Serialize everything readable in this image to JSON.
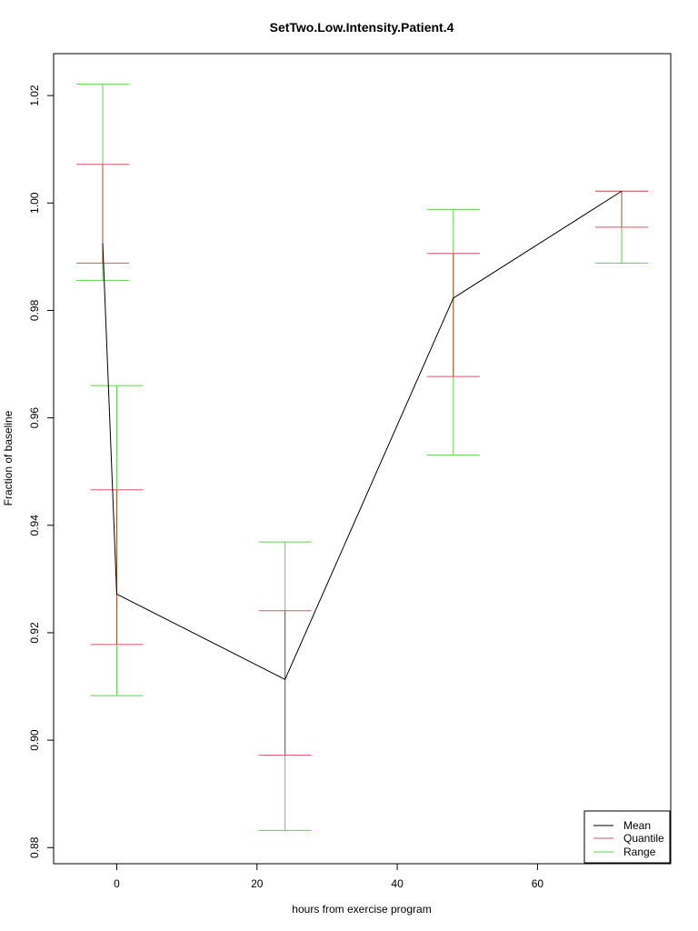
{
  "chart_data": {
    "type": "line",
    "title": "SetTwo.Low.Intensity.Patient.4",
    "xlabel": "hours from exercise program",
    "ylabel": "Fraction of baseline",
    "xlim": [
      -9,
      79
    ],
    "ylim": [
      0.877,
      1.0278
    ],
    "x_ticks": [
      0,
      20,
      40,
      60
    ],
    "y_ticks": [
      0.88,
      0.9,
      0.92,
      0.94,
      0.96,
      0.98,
      1.0,
      1.02
    ],
    "x_tick_labels": [
      "0",
      "20",
      "40",
      "60"
    ],
    "y_tick_labels": [
      "0.88",
      "0.90",
      "0.92",
      "0.94",
      "0.96",
      "0.98",
      "1.00",
      "1.02"
    ],
    "mean": {
      "x": [
        -2,
        0,
        24,
        48,
        72
      ],
      "y": [
        0.9925,
        0.9272,
        0.9113,
        0.9823,
        1.0022
      ]
    },
    "quantile_bars": [
      {
        "x": -2,
        "low": 0.9888,
        "high": 1.0072
      },
      {
        "x": 0,
        "low": 0.9178,
        "high": 0.9466
      },
      {
        "x": 24,
        "low": 0.8972,
        "high": 0.9241
      },
      {
        "x": 48,
        "low": 0.9677,
        "high": 0.9906
      },
      {
        "x": 72,
        "low": 0.9955,
        "high": 1.0022
      }
    ],
    "range_bars": [
      {
        "x": -2,
        "low": 0.9856,
        "high": 1.0221
      },
      {
        "x": 0,
        "low": 0.9083,
        "high": 0.966
      },
      {
        "x": 24,
        "low": 0.8832,
        "high": 0.9369
      },
      {
        "x": 48,
        "low": 0.9531,
        "high": 0.9988
      },
      {
        "x": 72,
        "low": 0.9888,
        "high": 1.0022
      }
    ],
    "legend": {
      "position": "bottom-right",
      "entries": [
        {
          "label": "Mean",
          "color": "#000000"
        },
        {
          "label": "Quantile",
          "color": "#df536b"
        },
        {
          "label": "Range",
          "color": "#61d04f"
        }
      ]
    },
    "colors": {
      "mean": "#000000",
      "quantile": "#df536b",
      "range": "#61d04f",
      "overlap": "#a0522d"
    },
    "grid": false
  }
}
